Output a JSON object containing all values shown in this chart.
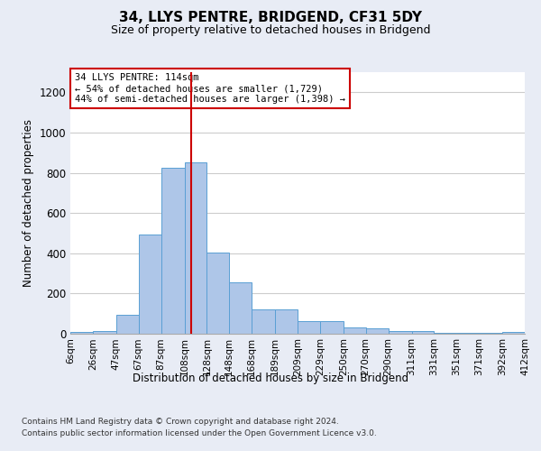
{
  "title": "34, LLYS PENTRE, BRIDGEND, CF31 5DY",
  "subtitle": "Size of property relative to detached houses in Bridgend",
  "xlabel": "Distribution of detached houses by size in Bridgend",
  "ylabel": "Number of detached properties",
  "bar_color": "#aec6e8",
  "bar_edge_color": "#5a9fd4",
  "vline_color": "#cc0000",
  "vline_x": 114,
  "bins": [
    6,
    26,
    47,
    67,
    87,
    108,
    128,
    148,
    168,
    189,
    209,
    229,
    250,
    270,
    290,
    311,
    331,
    351,
    371,
    392,
    412
  ],
  "bin_labels": [
    "6sqm",
    "26sqm",
    "47sqm",
    "67sqm",
    "87sqm",
    "108sqm",
    "128sqm",
    "148sqm",
    "168sqm",
    "189sqm",
    "209sqm",
    "229sqm",
    "250sqm",
    "270sqm",
    "290sqm",
    "311sqm",
    "331sqm",
    "351sqm",
    "371sqm",
    "392sqm",
    "412sqm"
  ],
  "counts": [
    10,
    15,
    95,
    495,
    825,
    850,
    405,
    255,
    120,
    120,
    65,
    65,
    30,
    25,
    15,
    15,
    5,
    5,
    5,
    10,
    5
  ],
  "ylim": [
    0,
    1300
  ],
  "yticks": [
    0,
    200,
    400,
    600,
    800,
    1000,
    1200
  ],
  "annotation_text": "34 LLYS PENTRE: 114sqm\n← 54% of detached houses are smaller (1,729)\n44% of semi-detached houses are larger (1,398) →",
  "annotation_box_color": "#ffffff",
  "annotation_box_edge": "#cc0000",
  "footer_line1": "Contains HM Land Registry data © Crown copyright and database right 2024.",
  "footer_line2": "Contains public sector information licensed under the Open Government Licence v3.0.",
  "background_color": "#e8ecf5",
  "plot_bg_color": "#ffffff",
  "grid_color": "#cccccc"
}
